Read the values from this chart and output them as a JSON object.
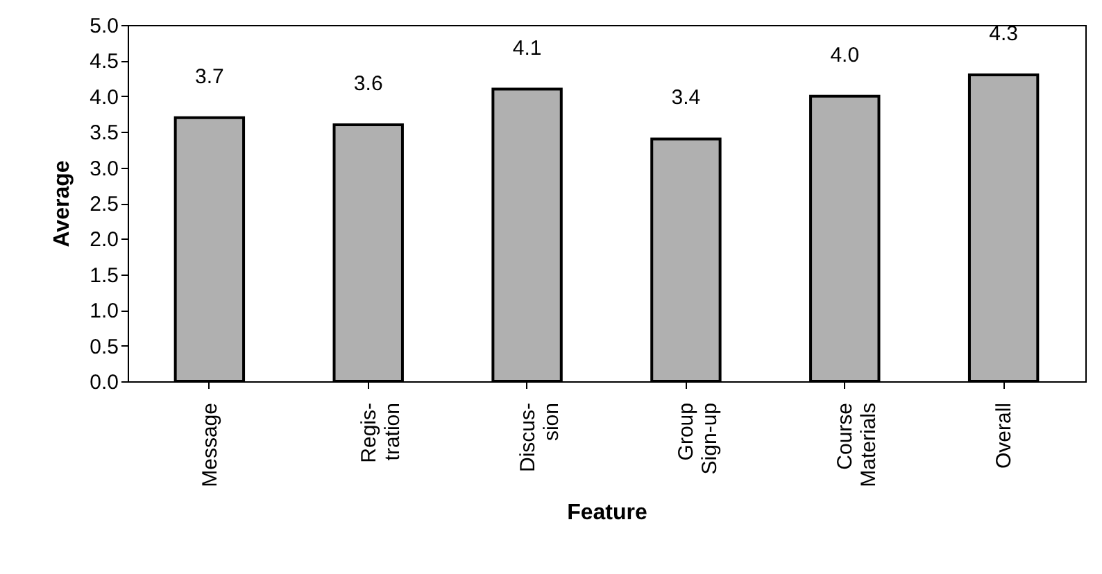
{
  "chart_data": {
    "type": "bar",
    "xlabel": "Feature",
    "ylabel": "Average",
    "categories": [
      "Message",
      "Regis-\ntration",
      "Discus-\nsion",
      "Group\nSign-up",
      "Course\nMaterials",
      "Overall"
    ],
    "values": [
      3.7,
      3.6,
      4.1,
      3.4,
      4.0,
      4.3
    ],
    "value_labels": [
      "3.7",
      "3.6",
      "4.1",
      "3.4",
      "4.0",
      "4.3"
    ],
    "color": "#b0b0b0",
    "ylim": [
      0,
      5
    ],
    "yticks": [
      {
        "value": 0,
        "label": "0.0"
      },
      {
        "value": 0.5,
        "label": "0.5"
      },
      {
        "value": 1,
        "label": "1.0"
      },
      {
        "value": 1.5,
        "label": "1.5"
      },
      {
        "value": 2,
        "label": "2.0"
      },
      {
        "value": 2.5,
        "label": "2.5"
      },
      {
        "value": 3,
        "label": "3.0"
      },
      {
        "value": 3.5,
        "label": "3.5"
      },
      {
        "value": 4,
        "label": "4.0"
      },
      {
        "value": 4.5,
        "label": "4.5"
      },
      {
        "value": 5,
        "label": "5.0"
      }
    ]
  }
}
